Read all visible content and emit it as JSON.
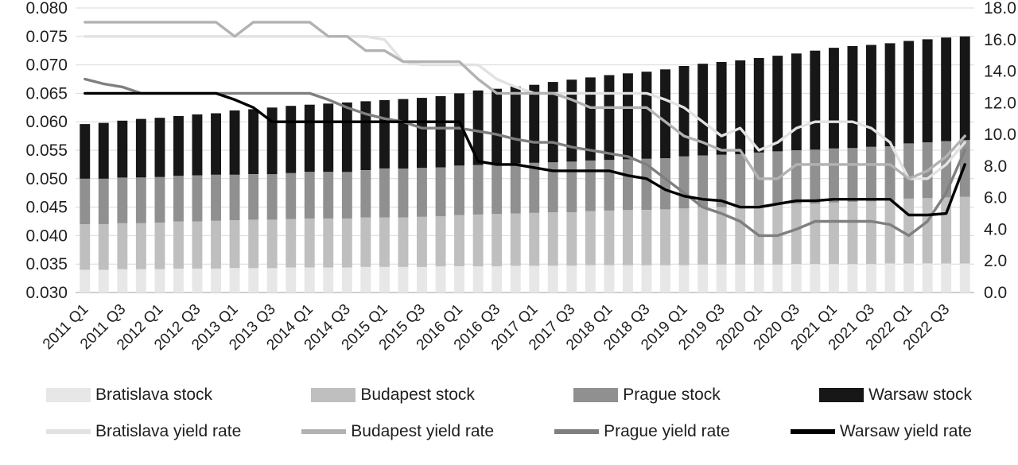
{
  "chart_data": {
    "type": "combo-stacked-bar-and-line",
    "title": "",
    "categories": [
      "2011 Q1",
      "2011 Q2",
      "2011 Q3",
      "2011 Q4",
      "2012 Q1",
      "2012 Q2",
      "2012 Q3",
      "2012 Q4",
      "2013 Q1",
      "2013 Q2",
      "2013 Q3",
      "2013 Q4",
      "2014 Q1",
      "2014 Q2",
      "2014 Q3",
      "2014 Q4",
      "2015 Q1",
      "2015 Q2",
      "2015 Q3",
      "2015 Q4",
      "2016 Q1",
      "2016 Q2",
      "2016 Q3",
      "2016 Q4",
      "2017 Q1",
      "2017 Q2",
      "2017 Q3",
      "2017 Q4",
      "2018 Q1",
      "2018 Q2",
      "2018 Q3",
      "2018 Q4",
      "2019 Q1",
      "2019 Q2",
      "2019 Q3",
      "2019 Q4",
      "2020 Q1",
      "2020 Q2",
      "2020 Q3",
      "2020 Q4",
      "2021 Q1",
      "2021 Q2",
      "2021 Q3",
      "2021 Q4",
      "2022 Q1",
      "2022 Q2",
      "2022 Q3",
      "2022 Q4"
    ],
    "x_label_every": 2,
    "left_axis": {
      "min": 0.03,
      "max": 0.08,
      "ticks": [
        "0.080",
        "0.075",
        "0.070",
        "0.065",
        "0.060",
        "0.055",
        "0.050",
        "0.045",
        "0.040",
        "0.035",
        "0.030"
      ]
    },
    "right_axis": {
      "min": 0.0,
      "max": 18.0,
      "ticks": [
        "18.0",
        "16.0",
        "14.0",
        "12.0",
        "10.0",
        "8.0",
        "6.0",
        "4.0",
        "2.0",
        "0.0"
      ]
    },
    "bar_baseline": 0.03,
    "grid_color": "#d9d9d9",
    "axis_line_color": "#bfbfbf",
    "bar_series": [
      {
        "name": "Bratislava stock",
        "color": "#e7e7e7",
        "values": [
          0.034,
          0.034,
          0.0341,
          0.0341,
          0.0341,
          0.0342,
          0.0342,
          0.0342,
          0.0343,
          0.0343,
          0.0343,
          0.0344,
          0.0344,
          0.0344,
          0.0344,
          0.0345,
          0.0345,
          0.0345,
          0.0345,
          0.0346,
          0.0346,
          0.0346,
          0.0346,
          0.0347,
          0.0347,
          0.0347,
          0.0347,
          0.0348,
          0.0348,
          0.0348,
          0.0348,
          0.0348,
          0.0348,
          0.0349,
          0.0349,
          0.0349,
          0.0349,
          0.0349,
          0.035,
          0.035,
          0.035,
          0.035,
          0.035,
          0.0351,
          0.0351,
          0.0351,
          0.0351,
          0.0351
        ]
      },
      {
        "name": "Budapest stock",
        "color": "#bfbfbf",
        "values": [
          0.008,
          0.008,
          0.0081,
          0.0081,
          0.0082,
          0.0083,
          0.0083,
          0.0084,
          0.0084,
          0.0085,
          0.0085,
          0.0085,
          0.0086,
          0.0086,
          0.0086,
          0.0087,
          0.0087,
          0.0087,
          0.0088,
          0.0088,
          0.009,
          0.0091,
          0.0092,
          0.0092,
          0.0093,
          0.0094,
          0.0094,
          0.0095,
          0.0096,
          0.0097,
          0.0097,
          0.0098,
          0.01,
          0.0101,
          0.0101,
          0.0102,
          0.0104,
          0.0105,
          0.0106,
          0.0106,
          0.0108,
          0.0109,
          0.011,
          0.011,
          0.0114,
          0.0115,
          0.0116,
          0.0117
        ]
      },
      {
        "name": "Prague stock",
        "color": "#909090",
        "values": [
          0.008,
          0.008,
          0.008,
          0.008,
          0.008,
          0.008,
          0.0081,
          0.0081,
          0.008,
          0.008,
          0.008,
          0.0081,
          0.0082,
          0.0082,
          0.0082,
          0.0083,
          0.0086,
          0.0086,
          0.0086,
          0.0086,
          0.0087,
          0.0087,
          0.0088,
          0.0088,
          0.0088,
          0.0088,
          0.0089,
          0.0089,
          0.0089,
          0.0089,
          0.009,
          0.009,
          0.0091,
          0.0091,
          0.0092,
          0.0092,
          0.0093,
          0.0094,
          0.0094,
          0.0095,
          0.0095,
          0.0095,
          0.0096,
          0.0096,
          0.0097,
          0.0098,
          0.0099,
          0.01
        ]
      },
      {
        "name": "Warsaw stock",
        "color": "#171717",
        "values": [
          0.0096,
          0.0098,
          0.01,
          0.0103,
          0.0104,
          0.0105,
          0.0107,
          0.0108,
          0.0113,
          0.0114,
          0.0117,
          0.0118,
          0.0118,
          0.012,
          0.0122,
          0.0121,
          0.012,
          0.0122,
          0.0123,
          0.0125,
          0.0127,
          0.0131,
          0.0132,
          0.0135,
          0.0137,
          0.0141,
          0.0144,
          0.0146,
          0.0149,
          0.0151,
          0.0153,
          0.0156,
          0.0159,
          0.0161,
          0.0163,
          0.0165,
          0.0166,
          0.0168,
          0.017,
          0.0174,
          0.0177,
          0.0179,
          0.0179,
          0.0181,
          0.018,
          0.0181,
          0.0182,
          0.0182
        ]
      }
    ],
    "line_series": [
      {
        "name": "Bratislava yield rate",
        "color": "#e2e2e2",
        "values": [
          16.2,
          16.2,
          16.2,
          16.2,
          16.2,
          16.2,
          16.2,
          16.2,
          16.2,
          16.2,
          16.2,
          16.2,
          16.2,
          16.2,
          16.2,
          16.2,
          16.0,
          14.6,
          14.4,
          14.4,
          14.4,
          14.4,
          13.5,
          13.0,
          12.6,
          12.6,
          12.6,
          12.6,
          12.6,
          12.6,
          12.6,
          12.2,
          11.7,
          10.8,
          9.9,
          10.4,
          9.0,
          9.5,
          10.4,
          10.8,
          10.8,
          10.8,
          10.4,
          9.5,
          7.2,
          7.2,
          8.1,
          9.5
        ]
      },
      {
        "name": "Budapest yield rate",
        "color": "#b2b2b2",
        "values": [
          17.1,
          17.1,
          17.1,
          17.1,
          17.1,
          17.1,
          17.1,
          17.1,
          16.2,
          17.1,
          17.1,
          17.1,
          17.1,
          16.2,
          16.2,
          15.3,
          15.3,
          14.6,
          14.6,
          14.6,
          14.6,
          13.5,
          12.6,
          12.6,
          12.6,
          12.6,
          12.2,
          11.7,
          11.7,
          11.7,
          11.7,
          10.8,
          9.9,
          9.5,
          9.0,
          9.0,
          7.2,
          7.2,
          8.1,
          8.1,
          8.1,
          8.1,
          8.1,
          8.1,
          7.2,
          7.7,
          8.6,
          9.9
        ]
      },
      {
        "name": "Prague yield rate",
        "color": "#7f7f7f",
        "values": [
          13.5,
          13.2,
          13.0,
          12.6,
          12.6,
          12.6,
          12.6,
          12.6,
          12.6,
          12.6,
          12.6,
          12.6,
          12.6,
          12.2,
          11.7,
          11.3,
          11.0,
          10.8,
          10.4,
          10.4,
          10.4,
          10.2,
          10.0,
          9.7,
          9.5,
          9.5,
          9.2,
          9.0,
          8.8,
          8.6,
          8.1,
          7.2,
          6.3,
          5.4,
          5.0,
          4.5,
          3.6,
          3.6,
          4.0,
          4.5,
          4.5,
          4.5,
          4.5,
          4.3,
          3.6,
          4.5,
          6.3,
          9.0
        ]
      },
      {
        "name": "Warsaw yield rate",
        "color": "#000000",
        "values": [
          12.6,
          12.6,
          12.6,
          12.6,
          12.6,
          12.6,
          12.6,
          12.6,
          12.2,
          11.7,
          10.8,
          10.8,
          10.8,
          10.8,
          10.8,
          10.8,
          10.8,
          10.8,
          10.8,
          10.8,
          10.8,
          8.3,
          8.1,
          8.1,
          7.9,
          7.7,
          7.7,
          7.7,
          7.7,
          7.4,
          7.2,
          6.5,
          6.1,
          5.9,
          5.8,
          5.4,
          5.4,
          5.6,
          5.8,
          5.8,
          5.9,
          5.9,
          5.9,
          5.9,
          4.9,
          4.9,
          5.0,
          8.1
        ]
      }
    ]
  },
  "legend": {
    "bar_row": [
      "Bratislava stock",
      "Budapest stock",
      "Prague stock",
      "Warsaw stock"
    ],
    "line_row": [
      "Bratislava yield rate",
      "Budapest yield rate",
      "Prague yield rate",
      "Warsaw yield rate"
    ]
  }
}
